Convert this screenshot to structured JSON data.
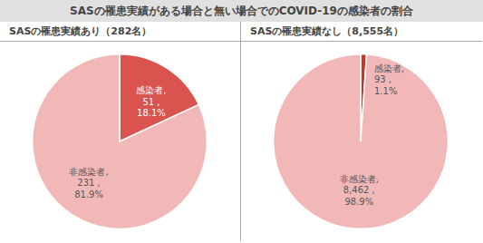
{
  "title": "SASの罹患実績がある場合と無い場合でのCOVID-19の感染者の割合",
  "chart_data": [
    {
      "type": "pie",
      "subtitle": "SASの罹患実績あり（282名）",
      "values": [
        51,
        231
      ],
      "value_labels": [
        "感染者,\n51 ,\n18.1%",
        "非感染者,\n231 ,\n81.9%"
      ],
      "colors": [
        "#d9534f",
        "#f2b8b8"
      ],
      "data_labels": true
    },
    {
      "type": "pie",
      "subtitle": "SASの罹患実績なし（8,555名）",
      "values": [
        93,
        8462
      ],
      "value_labels": [
        "感染者,\n93 ,\n1.1%",
        "非感染者,\n8,462 ,\n98.9%"
      ],
      "colors": [
        "#c0392b",
        "#f2b8b8"
      ],
      "data_labels": true
    }
  ]
}
